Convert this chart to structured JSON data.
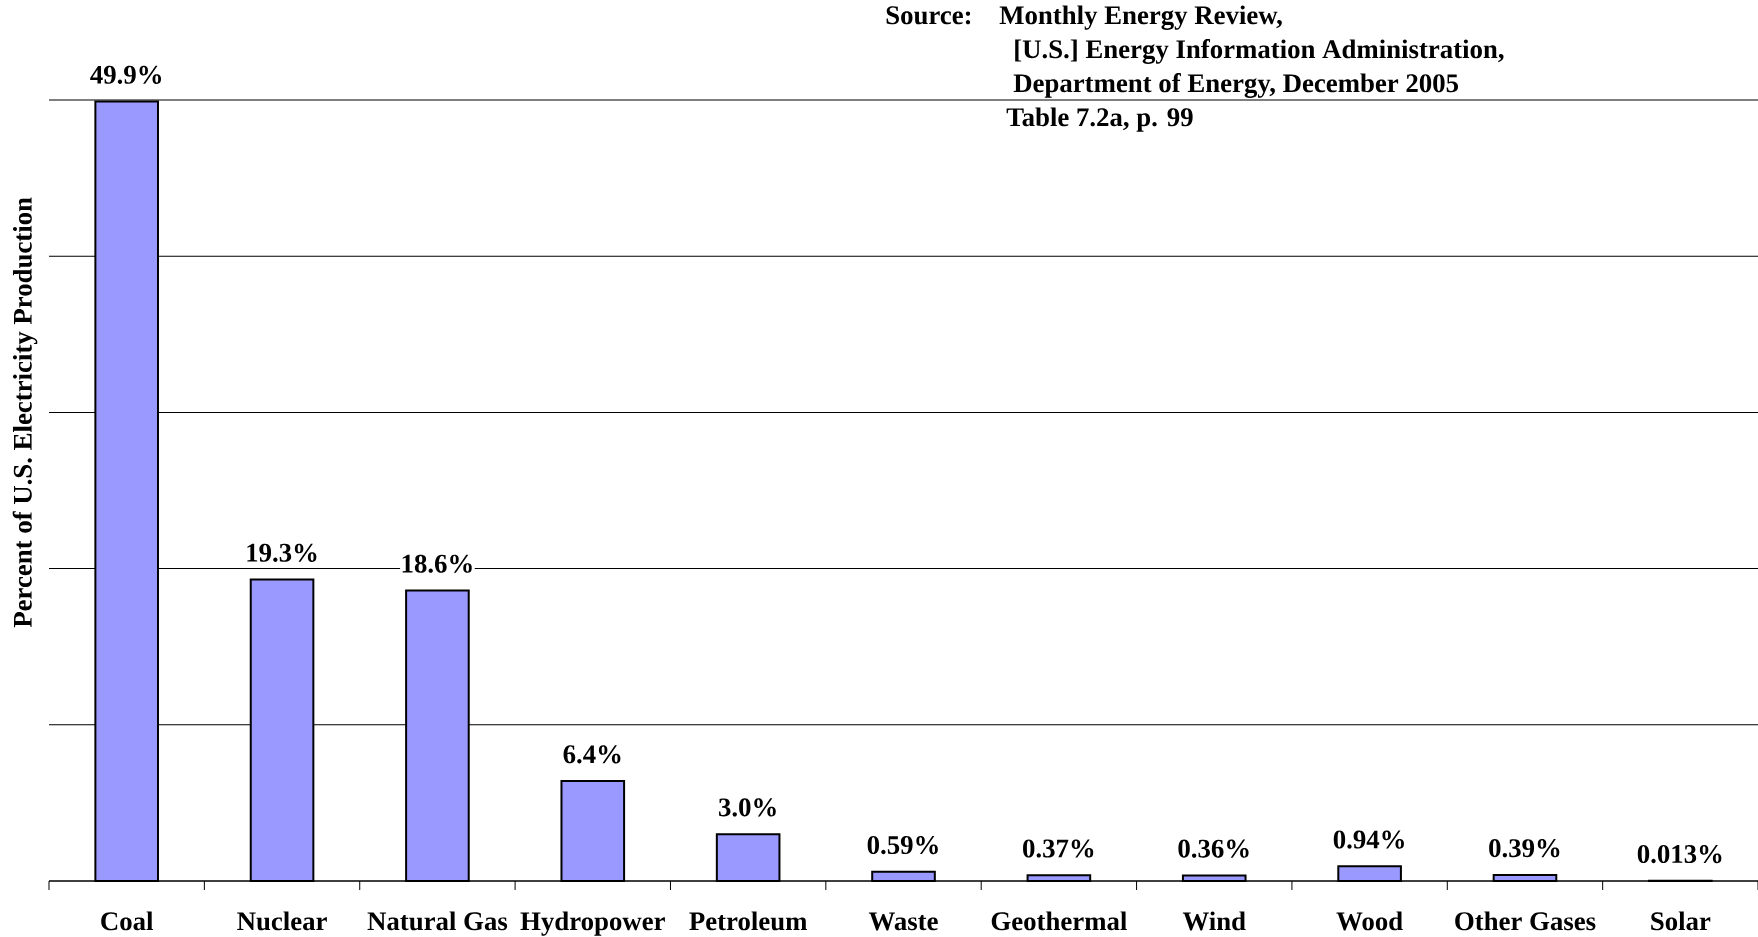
{
  "chart_data": {
    "type": "bar",
    "ylabel": "Percent of U.S. Electricity Production",
    "annotations": [
      "Source:",
      "Monthly Energy Review,",
      "[U.S.] Energy Information Administration,",
      "Department of Energy, December 2005",
      "Table 7.2a, p. 99"
    ],
    "categories": [
      "Coal",
      "Nuclear",
      "Natural Gas",
      "Hydropower",
      "Petroleum",
      "Waste",
      "Geothermal",
      "Wind",
      "Wood",
      "Other Gases",
      "Solar"
    ],
    "values": [
      49.9,
      19.3,
      18.6,
      6.4,
      3.0,
      0.59,
      0.37,
      0.36,
      0.94,
      0.39,
      0.013
    ],
    "value_labels": [
      "49.9%",
      "19.3%",
      "18.6%",
      "6.4%",
      "3.0%",
      "0.59%",
      "0.37%",
      "0.36%",
      "0.94%",
      "0.39%",
      "0.013%"
    ],
    "color": "#9999ff",
    "ylim": [
      0,
      50
    ],
    "yticks": [
      {
        "value": 0,
        "label": null
      },
      {
        "value": 10,
        "label": null
      },
      {
        "value": 20,
        "label": null
      },
      {
        "value": 30,
        "label": null
      },
      {
        "value": 40,
        "label": null
      },
      {
        "value": 50,
        "label": null
      }
    ],
    "grid": "y",
    "tick_labels": "x"
  }
}
